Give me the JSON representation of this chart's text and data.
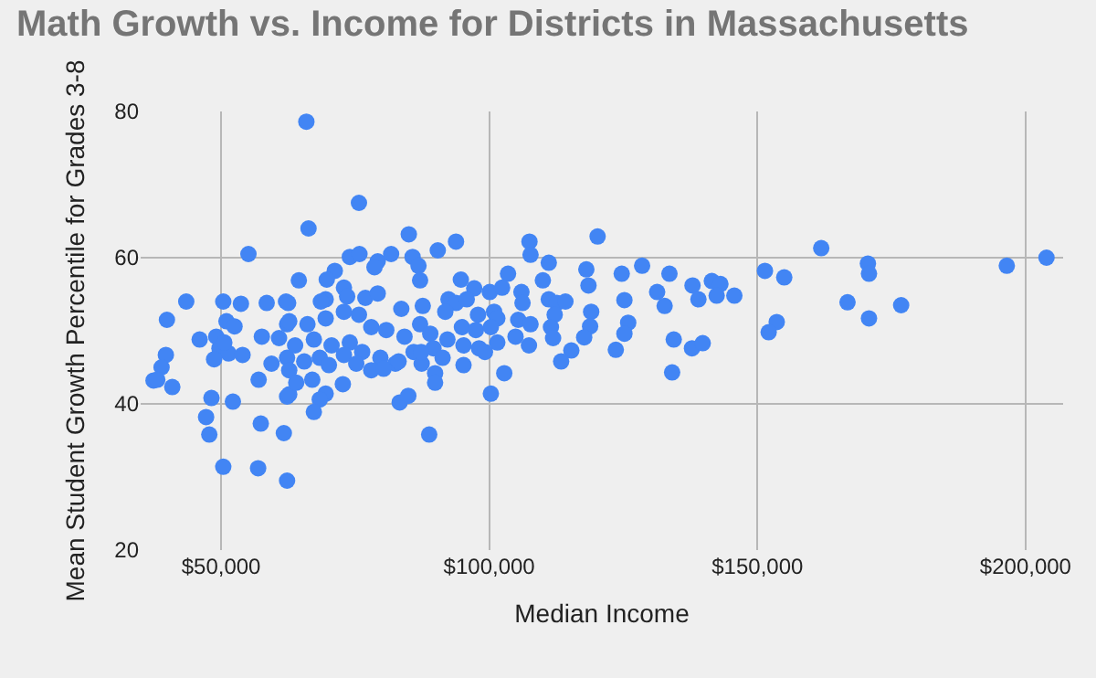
{
  "chart_data": {
    "type": "scatter",
    "title": "Math Growth vs. Income for Districts in Massachusetts",
    "xlabel": "Median Income",
    "ylabel": "Mean Student Growth Percentile for Grades 3-8",
    "xlim": [
      35000,
      207000
    ],
    "xticks": [
      {
        "value": 50000,
        "label": "$50,000"
      },
      {
        "value": 100000,
        "label": "$100,000"
      },
      {
        "value": 150000,
        "label": "$150,000"
      },
      {
        "value": 200000,
        "label": "$200,000"
      }
    ],
    "ylim": [
      20,
      80
    ],
    "yticks": [
      20,
      40,
      60,
      80
    ],
    "grid": true,
    "marker": "circle",
    "series": [
      {
        "color": "#4285f4",
        "x": [
          55100,
          43500,
          50400,
          53700,
          58500,
          62100,
          39900,
          51000,
          52500,
          46000,
          49100,
          57600,
          60800,
          62300,
          49700,
          51400,
          54000,
          48700,
          50600,
          39700,
          38900,
          37400,
          38100,
          40900,
          59400,
          57000,
          62300,
          62300,
          48200,
          52200,
          47200,
          47800,
          57400,
          61700,
          50400,
          56900,
          62300,
          65900,
          75700,
          66300,
          85000,
          64500,
          62500,
          74000,
          75800,
          79200,
          78600,
          81700,
          85700,
          86800,
          87100,
          71200,
          69700,
          72900,
          69500,
          68600,
          73500,
          76900,
          79200,
          83600,
          87600,
          62700,
          66100,
          69500,
          72900,
          75700,
          78000,
          80800,
          84200,
          87100,
          63800,
          67300,
          70600,
          74000,
          76300,
          79700,
          82500,
          85900,
          87400,
          65500,
          62700,
          68400,
          70100,
          72900,
          75200,
          78000,
          80300,
          83100,
          62700,
          64000,
          67000,
          69500,
          68400,
          67300,
          72700,
          83300,
          84900,
          88800,
          93800,
          90400,
          107500,
          107700,
          111100,
          110000,
          94700,
          103500,
          97200,
          100100,
          102400,
          106000,
          106200,
          92400,
          93800,
          95800,
          91800,
          97900,
          100900,
          101500,
          111100,
          112600,
          114200,
          112200,
          111500,
          105400,
          107700,
          94900,
          97500,
          89000,
          92200,
          89600,
          100300,
          104900,
          107400,
          111900,
          95200,
          98100,
          101500,
          87300,
          91300,
          95200,
          99200,
          115300,
          113400,
          89900,
          89900,
          102800,
          100300,
          120200,
          118100,
          118500,
          124700,
          128500,
          133600,
          131300,
          132700,
          125200,
          137900,
          139000,
          141500,
          143100,
          142400,
          145700,
          119000,
          118800,
          117700,
          125900,
          125200,
          123600,
          134400,
          137800,
          139800,
          134100,
          151400,
          155000,
          161900,
          170600,
          170800,
          166800,
          176800,
          170800,
          153600,
          152100,
          196500,
          203900
        ],
        "values": [
          60.5,
          54.0,
          54.0,
          53.7,
          53.8,
          54.0,
          51.5,
          51.3,
          50.6,
          48.8,
          49.2,
          49.2,
          49.0,
          50.9,
          47.6,
          46.9,
          46.7,
          46.1,
          48.4,
          46.7,
          45.0,
          43.2,
          43.3,
          42.3,
          45.5,
          43.3,
          46.3,
          41.0,
          40.8,
          40.3,
          38.2,
          35.8,
          37.3,
          36.0,
          31.4,
          31.2,
          29.5,
          78.6,
          67.5,
          64.0,
          63.2,
          56.9,
          53.8,
          60.1,
          60.5,
          59.5,
          58.7,
          60.5,
          60.1,
          58.9,
          56.9,
          58.2,
          57.0,
          55.9,
          54.3,
          54.0,
          54.7,
          54.5,
          55.1,
          53.0,
          53.4,
          51.3,
          50.9,
          51.7,
          52.6,
          52.2,
          50.5,
          50.1,
          49.2,
          50.9,
          48.0,
          48.8,
          48.0,
          48.4,
          47.1,
          46.3,
          45.5,
          47.1,
          45.5,
          45.8,
          44.6,
          46.3,
          45.3,
          46.7,
          45.5,
          44.6,
          44.8,
          45.8,
          41.3,
          42.9,
          43.3,
          41.4,
          40.6,
          38.9,
          42.7,
          40.2,
          41.1,
          35.8,
          62.2,
          61.0,
          62.2,
          60.4,
          59.3,
          56.9,
          57.0,
          57.8,
          55.8,
          55.3,
          55.9,
          55.3,
          53.8,
          54.3,
          53.8,
          54.3,
          52.6,
          52.2,
          52.6,
          51.7,
          54.3,
          53.8,
          54.0,
          52.2,
          50.5,
          51.5,
          50.9,
          50.5,
          50.1,
          49.6,
          48.8,
          47.6,
          50.5,
          49.2,
          48.0,
          49.0,
          48.0,
          47.6,
          48.4,
          47.1,
          46.3,
          45.3,
          47.1,
          47.3,
          45.8,
          44.2,
          42.9,
          44.2,
          41.4,
          62.9,
          58.4,
          56.2,
          57.8,
          58.9,
          57.8,
          55.3,
          53.4,
          54.2,
          56.2,
          54.3,
          56.8,
          56.4,
          54.8,
          54.8,
          52.6,
          50.6,
          49.1,
          51.1,
          49.6,
          47.4,
          48.8,
          47.6,
          48.3,
          44.3,
          58.2,
          57.3,
          61.3,
          59.2,
          57.8,
          53.9,
          53.5,
          51.7,
          51.2,
          49.8,
          58.9,
          60.0
        ]
      }
    ]
  }
}
